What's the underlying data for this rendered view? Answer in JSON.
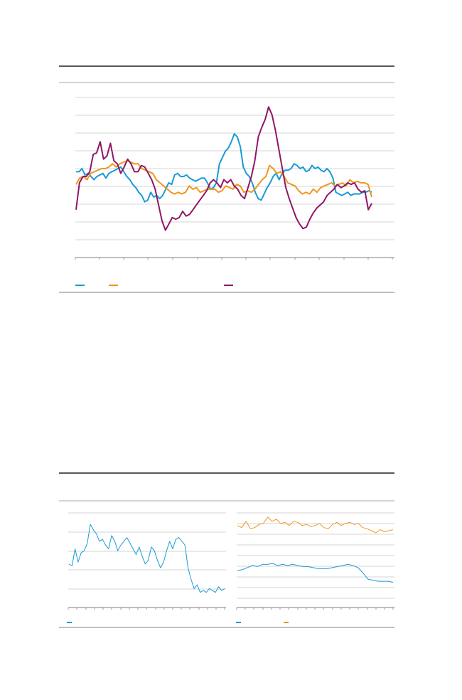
{
  "colors": {
    "blue": "#1a9ad6",
    "orange": "#f0961e",
    "purple": "#8e1764",
    "grid": "#c8c8c8",
    "rule": "#222222"
  },
  "chart_data": [
    {
      "type": "line",
      "title": "",
      "xlabel": "",
      "ylabel": "",
      "x_range": [
        0,
        164
      ],
      "y_range": [
        0,
        9
      ],
      "grid": true,
      "legend": "bottom-left",
      "series": [
        {
          "color": "#1a9ad6",
          "values": [
            4.3,
            4.3,
            4.5,
            4.1,
            4.2,
            4.0,
            3.8,
            4.0,
            4.1,
            4.2,
            3.9,
            4.2,
            4.3,
            4.4,
            4.5,
            4.6,
            4.3,
            4.0,
            3.8,
            3.5,
            3.3,
            3.0,
            2.8,
            2.4,
            2.5,
            3.0,
            2.7,
            2.8,
            2.6,
            2.8,
            3.2,
            3.6,
            3.5,
            4.1,
            4.2,
            4.0,
            4.0,
            4.1,
            3.9,
            3.8,
            3.7,
            3.8,
            3.9,
            3.9,
            3.6,
            3.2,
            3.3,
            3.6,
            4.8,
            5.2,
            5.6,
            5.8,
            6.2,
            6.7,
            6.5,
            5.9,
            4.6,
            4.2,
            4.0,
            3.6,
            3.0,
            2.6,
            2.5,
            2.9,
            3.3,
            3.6,
            4.0,
            4.2,
            3.8,
            4.2,
            4.4,
            4.4,
            4.5,
            4.8,
            4.7,
            4.5,
            4.6,
            4.3,
            4.4,
            4.7,
            4.5,
            4.6,
            4.4,
            4.3,
            4.5,
            4.3,
            3.9,
            3.0,
            2.9,
            2.8,
            2.9,
            3.0,
            2.8,
            2.9,
            2.9,
            2.9,
            3.0,
            3.0,
            3.1,
            3.0
          ],
          "x_start": 0,
          "x_step": 1.55
        },
        {
          "color": "#f0961e",
          "values": [
            3.5,
            3.9,
            4.0,
            3.8,
            4.2,
            4.3,
            4.4,
            4.5,
            4.5,
            4.6,
            4.8,
            4.6,
            4.8,
            4.9,
            5.0,
            4.9,
            4.8,
            4.8,
            4.5,
            4.4,
            4.3,
            4.2,
            3.8,
            3.6,
            3.4,
            3.2,
            3.0,
            2.9,
            3.0,
            2.9,
            3.0,
            3.4,
            3.2,
            3.3,
            3.0,
            3.1,
            3.2,
            3.2,
            3.2,
            3.0,
            3.1,
            3.4,
            3.3,
            3.2,
            3.5,
            3.4,
            3.0,
            3.1,
            3.0,
            3.2,
            3.5,
            3.8,
            4.0,
            4.7,
            4.5,
            4.2,
            4.3,
            4.0,
            3.6,
            3.5,
            3.4,
            3.1,
            2.9,
            3.0,
            2.9,
            3.2,
            3.0,
            3.3,
            3.4,
            3.5,
            3.6,
            3.4,
            3.5,
            3.6,
            3.4,
            3.8,
            3.6,
            3.7,
            3.6,
            3.6,
            3.5,
            2.7
          ],
          "x_start": 0,
          "x_step": 1.9
        },
        {
          "color": "#8e1764",
          "values": [
            1.9,
            3.6,
            4.0,
            4.0,
            4.3,
            5.4,
            5.5,
            6.2,
            5.1,
            5.3,
            6.1,
            5.0,
            4.8,
            4.2,
            4.6,
            5.1,
            4.8,
            4.3,
            4.3,
            4.7,
            4.6,
            4.2,
            3.8,
            3.2,
            2.2,
            1.2,
            0.6,
            1.0,
            1.4,
            1.3,
            1.4,
            1.8,
            1.5,
            1.6,
            1.9,
            2.2,
            2.5,
            2.8,
            3.1,
            3.6,
            3.8,
            3.6,
            3.3,
            3.8,
            3.6,
            3.8,
            3.4,
            3.2,
            2.8,
            2.6,
            3.3,
            4.0,
            5.0,
            6.5,
            7.1,
            7.6,
            8.4,
            7.9,
            6.9,
            5.7,
            4.5,
            3.3,
            2.6,
            2.0,
            1.4,
            1.0,
            0.7,
            0.8,
            1.3,
            1.7,
            2.0,
            2.2,
            2.4,
            2.8,
            3.0,
            3.2,
            3.5,
            3.3,
            3.4,
            3.6,
            3.5,
            3.6,
            3.2,
            3.0,
            3.1,
            1.9,
            2.3
          ],
          "x_start": 0,
          "x_step": 1.8
        }
      ]
    },
    {
      "type": "line",
      "title": "",
      "xlabel": "",
      "ylabel": "",
      "x_range": [
        0,
        18
      ],
      "y_range": [
        0,
        5
      ],
      "grid": true,
      "legend": "bottom-left",
      "series": [
        {
          "color": "#1a9ad6",
          "values": [
            2.3,
            2.2,
            3.1,
            2.4,
            2.9,
            3.0,
            3.4,
            4.4,
            4.1,
            3.9,
            3.5,
            3.6,
            3.3,
            3.1,
            3.8,
            3.5,
            3.0,
            3.3,
            3.5,
            3.7,
            3.4,
            3.1,
            2.8,
            3.2,
            2.7,
            2.3,
            2.5,
            3.2,
            3.0,
            2.5,
            2.1,
            2.4,
            3.0,
            3.5,
            3.1,
            3.6,
            3.7,
            3.5,
            3.3,
            2.1,
            1.5,
            1.0,
            1.2,
            0.8,
            0.9,
            0.8,
            1.0,
            0.9,
            0.8,
            1.1,
            0.9,
            1.0
          ]
        }
      ]
    },
    {
      "type": "line",
      "title": "",
      "xlabel": "",
      "ylabel": "",
      "x_range": [
        0,
        18
      ],
      "y_range": [
        0,
        9
      ],
      "grid": true,
      "legend": "bottom-left",
      "series": [
        {
          "color": "#f0961e",
          "values": [
            7.8,
            7.6,
            8.2,
            7.5,
            7.6,
            7.9,
            8.0,
            8.6,
            8.2,
            8.4,
            8.0,
            8.1,
            7.8,
            8.2,
            8.1,
            7.8,
            7.9,
            7.7,
            7.8,
            8.0,
            7.6,
            7.5,
            7.9,
            8.1,
            7.8,
            8.0,
            8.1,
            7.9,
            8.0,
            7.6,
            7.5,
            7.3,
            7.1,
            7.4,
            7.2,
            7.3,
            7.4
          ]
        },
        {
          "color": "#1a9ad6",
          "values": [
            3.5,
            3.6,
            3.8,
            4.0,
            3.9,
            4.1,
            4.1,
            4.2,
            4.0,
            4.1,
            4.0,
            4.1,
            4.0,
            3.9,
            3.9,
            3.8,
            3.7,
            3.7,
            3.7,
            3.8,
            3.9,
            4.0,
            4.1,
            4.0,
            3.8,
            3.3,
            2.7,
            2.6,
            2.5,
            2.5,
            2.5,
            2.4
          ]
        }
      ]
    }
  ]
}
